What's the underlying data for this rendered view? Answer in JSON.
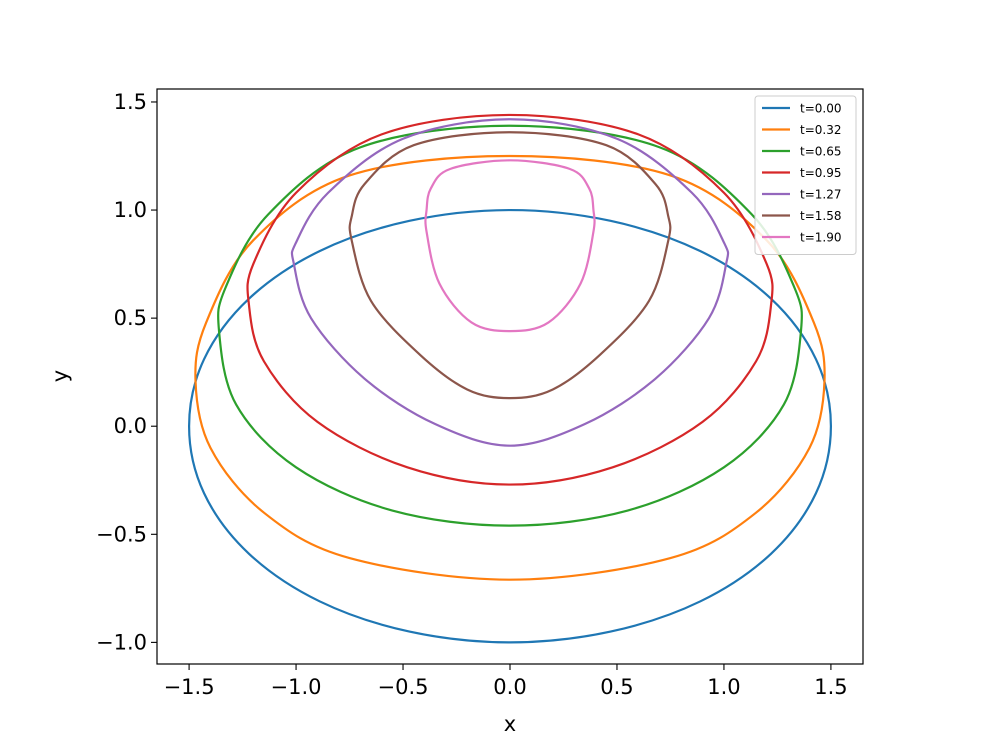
{
  "chart_data": {
    "type": "line",
    "title": "",
    "xlabel": "x",
    "ylabel": "y",
    "xlim": [
      -1.65,
      1.65
    ],
    "ylim": [
      -1.1,
      1.56
    ],
    "xticks": [
      -1.5,
      -1.0,
      -0.5,
      0.0,
      0.5,
      1.0,
      1.5
    ],
    "yticks": [
      -1.0,
      -0.5,
      0.0,
      0.5,
      1.0,
      1.5
    ],
    "xtick_labels": [
      "−1.5",
      "−1.0",
      "−0.5",
      "0.0",
      "0.5",
      "1.0",
      "1.5"
    ],
    "ytick_labels": [
      "−1.0",
      "−0.5",
      "0.0",
      "0.5",
      "1.0",
      "1.5"
    ],
    "grid": false,
    "legend": "upper-right",
    "series": [
      {
        "name": "t=0.00",
        "color": "#1f77b4",
        "x": [
          0.0,
          0.47,
          0.89,
          1.22,
          1.43,
          1.5,
          1.43,
          1.22,
          0.89,
          0.47,
          0.0,
          -0.47,
          -0.89,
          -1.22,
          -1.43,
          -1.5,
          -1.43,
          -1.22,
          -0.89,
          -0.47,
          0.0
        ],
        "y": [
          1.0,
          0.95,
          0.81,
          0.59,
          0.31,
          0.0,
          -0.31,
          -0.59,
          -0.81,
          -0.95,
          -1.0,
          -0.95,
          -0.81,
          -0.59,
          -0.31,
          0.0,
          0.31,
          0.59,
          0.81,
          0.95,
          1.0
        ]
      },
      {
        "name": "t=0.32",
        "color": "#ff7f0e",
        "x": [
          0.0,
          0.75,
          1.2,
          1.42,
          1.47,
          1.4,
          1.15,
          0.75,
          0.0,
          -0.75,
          -1.15,
          -1.4,
          -1.47,
          -1.42,
          -1.2,
          -0.75,
          0.0
        ],
        "y": [
          1.25,
          1.16,
          0.86,
          0.48,
          0.21,
          -0.1,
          -0.4,
          -0.61,
          -0.71,
          -0.61,
          -0.4,
          -0.1,
          0.21,
          0.48,
          0.86,
          1.16,
          1.25
        ]
      },
      {
        "name": "t=0.65",
        "color": "#2ca02c",
        "x": [
          0.0,
          0.7,
          1.13,
          1.33,
          1.36,
          1.28,
          1.0,
          0.55,
          0.0,
          -0.55,
          -1.0,
          -1.28,
          -1.36,
          -1.33,
          -1.13,
          -0.7,
          0.0
        ],
        "y": [
          1.39,
          1.29,
          0.98,
          0.64,
          0.44,
          0.1,
          -0.19,
          -0.39,
          -0.46,
          -0.39,
          -0.19,
          0.1,
          0.44,
          0.64,
          0.98,
          1.29,
          1.39
        ]
      },
      {
        "name": "t=0.95",
        "color": "#d62728",
        "x": [
          0.0,
          0.6,
          1.0,
          1.2,
          1.22,
          1.15,
          0.9,
          0.48,
          0.0,
          -0.48,
          -0.9,
          -1.15,
          -1.22,
          -1.2,
          -1.0,
          -0.6,
          0.0
        ],
        "y": [
          1.44,
          1.35,
          1.08,
          0.75,
          0.56,
          0.3,
          0.02,
          -0.19,
          -0.27,
          -0.19,
          0.02,
          0.3,
          0.56,
          0.75,
          1.08,
          1.35,
          1.44
        ]
      },
      {
        "name": "t=1.27",
        "color": "#9467bd",
        "x": [
          0.0,
          0.5,
          0.85,
          1.0,
          1.01,
          0.93,
          0.68,
          0.35,
          0.0,
          -0.35,
          -0.68,
          -0.93,
          -1.01,
          -1.0,
          -0.85,
          -0.5,
          0.0
        ],
        "y": [
          1.42,
          1.33,
          1.08,
          0.85,
          0.75,
          0.5,
          0.22,
          0.01,
          -0.09,
          0.01,
          0.22,
          0.5,
          0.75,
          0.85,
          1.08,
          1.33,
          1.42
        ]
      },
      {
        "name": "t=1.58",
        "color": "#8c564b",
        "x": [
          0.0,
          0.45,
          0.68,
          0.74,
          0.74,
          0.65,
          0.42,
          0.2,
          0.0,
          -0.2,
          -0.42,
          -0.65,
          -0.74,
          -0.74,
          -0.68,
          -0.45,
          0.0
        ],
        "y": [
          1.36,
          1.3,
          1.12,
          0.97,
          0.86,
          0.58,
          0.33,
          0.17,
          0.13,
          0.17,
          0.33,
          0.58,
          0.86,
          0.97,
          1.12,
          1.3,
          1.36
        ]
      },
      {
        "name": "t=1.90",
        "color": "#e377c2",
        "x": [
          0.0,
          0.28,
          0.37,
          0.39,
          0.39,
          0.33,
          0.18,
          0.0,
          -0.18,
          -0.33,
          -0.39,
          -0.39,
          -0.37,
          -0.28,
          0.0
        ],
        "y": [
          1.23,
          1.19,
          1.1,
          1.0,
          0.9,
          0.66,
          0.48,
          0.44,
          0.48,
          0.66,
          0.9,
          1.0,
          1.1,
          1.19,
          1.23
        ]
      }
    ]
  }
}
